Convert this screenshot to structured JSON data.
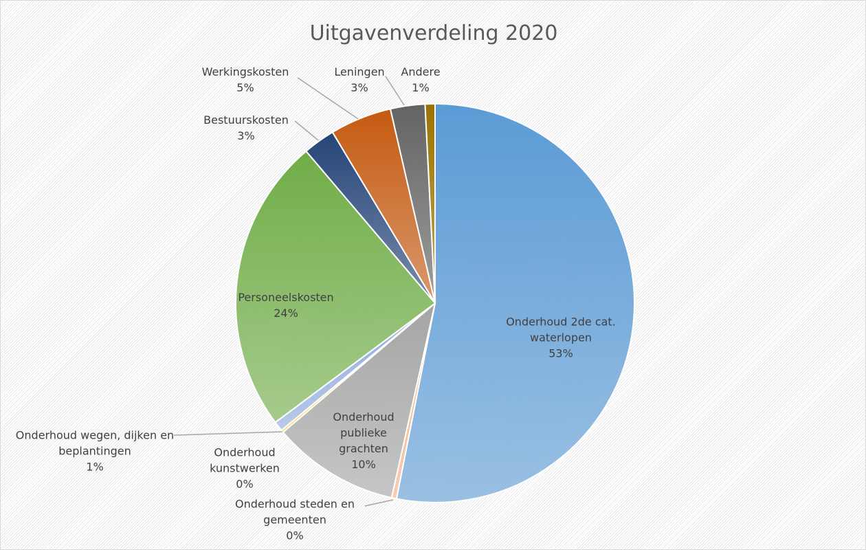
{
  "chart_data": {
    "type": "pie",
    "title": "Uitgavenverdeling 2020",
    "categories": [
      "Onderhoud 2de cat. waterlopen",
      "Onderhoud steden en gemeenten",
      "Onderhoud publieke grachten",
      "Onderhoud kunstwerken",
      "Onderhoud wegen, dijken en beplantingen",
      "Personeelskosten",
      "Bestuurskosten",
      "Werkingskosten",
      "Leningen",
      "Andere"
    ],
    "values": [
      53.1,
      0.4,
      10.3,
      0.2,
      0.8,
      24.0,
      2.6,
      5.0,
      2.8,
      0.8
    ],
    "value_labels": [
      "53%",
      "0%",
      "10%",
      "0%",
      "1%",
      "24%",
      "3%",
      "5%",
      "3%",
      "1%"
    ],
    "colors": [
      "#5b9bd5",
      "#f4b183",
      "#a5a5a5",
      "#ffc000",
      "#8faadc",
      "#70ad47",
      "#264478",
      "#c55a11",
      "#636363",
      "#997300"
    ]
  }
}
